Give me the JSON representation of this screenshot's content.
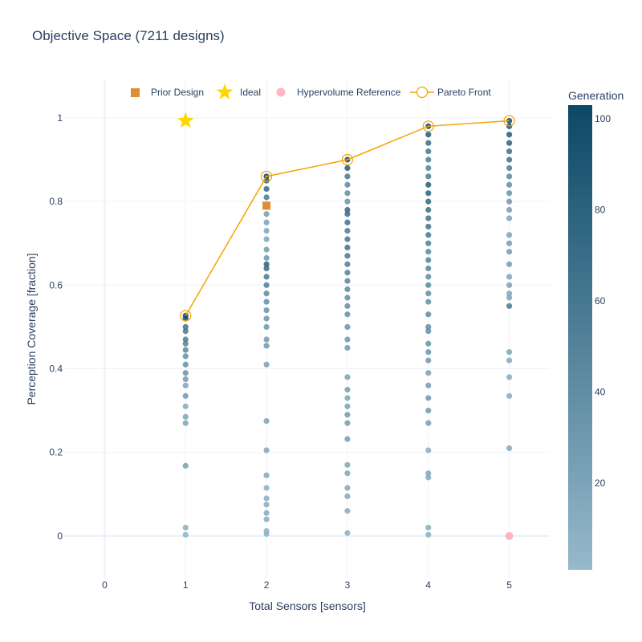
{
  "chart_data": {
    "type": "scatter",
    "title": "Objective Space (7211 designs)",
    "xlabel": "Total Sensors [sensors]",
    "ylabel": "Perception Coverage [fraction]",
    "xlim": [
      -0.5,
      5.5
    ],
    "ylim": [
      -0.1,
      1.09
    ],
    "x_ticks": [
      0,
      1,
      2,
      3,
      4,
      5
    ],
    "x_tick_labels": [
      "0",
      "1",
      "2",
      "3",
      "4",
      "5"
    ],
    "y_ticks": [
      0,
      0.2,
      0.4,
      0.6,
      0.8,
      1
    ],
    "y_tick_labels": [
      "0",
      "0.2",
      "0.4",
      "0.6",
      "0.8",
      "1"
    ],
    "grid": true,
    "legend_position": "top",
    "colorbar": {
      "title": "Generation",
      "range": [
        1,
        103
      ],
      "ticks": [
        20,
        40,
        60,
        80,
        100
      ],
      "tick_labels": [
        "20",
        "40",
        "60",
        "80",
        "100"
      ],
      "color_low": "#96b9cb",
      "color_high": "#0c4866"
    },
    "designs": [
      {
        "x": 1,
        "points": [
          [
            0.003,
            8
          ],
          [
            0.02,
            10
          ],
          [
            0.168,
            25
          ],
          [
            0.27,
            20
          ],
          [
            0.285,
            22
          ],
          [
            0.31,
            15
          ],
          [
            0.335,
            30
          ],
          [
            0.36,
            20
          ],
          [
            0.375,
            28
          ],
          [
            0.39,
            35
          ],
          [
            0.41,
            38
          ],
          [
            0.43,
            40
          ],
          [
            0.445,
            45
          ],
          [
            0.46,
            48
          ],
          [
            0.47,
            55
          ],
          [
            0.49,
            60
          ],
          [
            0.5,
            65
          ],
          [
            0.52,
            95
          ],
          [
            0.527,
            102
          ]
        ]
      },
      {
        "x": 2,
        "points": [
          [
            0.005,
            10
          ],
          [
            0.012,
            8
          ],
          [
            0.04,
            12
          ],
          [
            0.055,
            15
          ],
          [
            0.075,
            12
          ],
          [
            0.09,
            14
          ],
          [
            0.115,
            10
          ],
          [
            0.145,
            18
          ],
          [
            0.205,
            20
          ],
          [
            0.275,
            22
          ],
          [
            0.41,
            25
          ],
          [
            0.455,
            30
          ],
          [
            0.47,
            28
          ],
          [
            0.5,
            32
          ],
          [
            0.52,
            35
          ],
          [
            0.54,
            38
          ],
          [
            0.56,
            40
          ],
          [
            0.58,
            45
          ],
          [
            0.6,
            55
          ],
          [
            0.62,
            60
          ],
          [
            0.64,
            72
          ],
          [
            0.65,
            80
          ],
          [
            0.665,
            30
          ],
          [
            0.685,
            28
          ],
          [
            0.71,
            20
          ],
          [
            0.73,
            18
          ],
          [
            0.75,
            22
          ],
          [
            0.77,
            25
          ],
          [
            0.79,
            40
          ],
          [
            0.81,
            60
          ],
          [
            0.83,
            75
          ],
          [
            0.85,
            90
          ],
          [
            0.86,
            102
          ]
        ]
      },
      {
        "x": 3,
        "points": [
          [
            0.007,
            10
          ],
          [
            0.06,
            12
          ],
          [
            0.095,
            15
          ],
          [
            0.115,
            18
          ],
          [
            0.15,
            20
          ],
          [
            0.17,
            18
          ],
          [
            0.232,
            25
          ],
          [
            0.27,
            28
          ],
          [
            0.29,
            30
          ],
          [
            0.31,
            22
          ],
          [
            0.33,
            20
          ],
          [
            0.35,
            25
          ],
          [
            0.38,
            22
          ],
          [
            0.45,
            30
          ],
          [
            0.47,
            32
          ],
          [
            0.5,
            35
          ],
          [
            0.53,
            38
          ],
          [
            0.55,
            40
          ],
          [
            0.57,
            42
          ],
          [
            0.59,
            45
          ],
          [
            0.61,
            48
          ],
          [
            0.63,
            50
          ],
          [
            0.65,
            55
          ],
          [
            0.67,
            60
          ],
          [
            0.69,
            65
          ],
          [
            0.71,
            62
          ],
          [
            0.73,
            58
          ],
          [
            0.75,
            66
          ],
          [
            0.77,
            70
          ],
          [
            0.78,
            75
          ],
          [
            0.8,
            35
          ],
          [
            0.82,
            40
          ],
          [
            0.84,
            45
          ],
          [
            0.86,
            60
          ],
          [
            0.88,
            85
          ],
          [
            0.9,
            102
          ]
        ]
      },
      {
        "x": 4,
        "points": [
          [
            0.003,
            10
          ],
          [
            0.02,
            12
          ],
          [
            0.14,
            15
          ],
          [
            0.15,
            18
          ],
          [
            0.205,
            12
          ],
          [
            0.27,
            25
          ],
          [
            0.3,
            28
          ],
          [
            0.33,
            30
          ],
          [
            0.36,
            25
          ],
          [
            0.39,
            22
          ],
          [
            0.42,
            30
          ],
          [
            0.44,
            32
          ],
          [
            0.46,
            35
          ],
          [
            0.49,
            38
          ],
          [
            0.5,
            40
          ],
          [
            0.53,
            42
          ],
          [
            0.56,
            38
          ],
          [
            0.58,
            40
          ],
          [
            0.6,
            45
          ],
          [
            0.62,
            42
          ],
          [
            0.64,
            48
          ],
          [
            0.66,
            50
          ],
          [
            0.68,
            45
          ],
          [
            0.7,
            55
          ],
          [
            0.72,
            60
          ],
          [
            0.74,
            62
          ],
          [
            0.76,
            65
          ],
          [
            0.78,
            70
          ],
          [
            0.8,
            75
          ],
          [
            0.82,
            80
          ],
          [
            0.84,
            85
          ],
          [
            0.86,
            55
          ],
          [
            0.88,
            50
          ],
          [
            0.9,
            55
          ],
          [
            0.92,
            60
          ],
          [
            0.94,
            70
          ],
          [
            0.96,
            85
          ],
          [
            0.98,
            102
          ]
        ]
      },
      {
        "x": 5,
        "points": [
          [
            0.21,
            15
          ],
          [
            0.335,
            12
          ],
          [
            0.38,
            14
          ],
          [
            0.42,
            15
          ],
          [
            0.44,
            18
          ],
          [
            0.55,
            60
          ],
          [
            0.57,
            20
          ],
          [
            0.58,
            18
          ],
          [
            0.6,
            22
          ],
          [
            0.62,
            20
          ],
          [
            0.65,
            25
          ],
          [
            0.68,
            28
          ],
          [
            0.7,
            25
          ],
          [
            0.72,
            22
          ],
          [
            0.76,
            20
          ],
          [
            0.78,
            25
          ],
          [
            0.8,
            30
          ],
          [
            0.82,
            35
          ],
          [
            0.84,
            40
          ],
          [
            0.86,
            45
          ],
          [
            0.88,
            55
          ],
          [
            0.9,
            65
          ],
          [
            0.92,
            70
          ],
          [
            0.94,
            80
          ],
          [
            0.96,
            85
          ],
          [
            0.98,
            95
          ],
          [
            0.993,
            102
          ]
        ]
      }
    ],
    "prior_design": {
      "x": 2,
      "y": 0.79,
      "color": "#e08c33"
    },
    "ideal": {
      "x": 1,
      "y": 0.993,
      "color": "#ffd700"
    },
    "hypervolume_reference": {
      "x": 5,
      "y": 0.0,
      "color": "#ffb6c1"
    },
    "pareto_front": {
      "color": "#f5a300",
      "points": [
        [
          1,
          0.527
        ],
        [
          2,
          0.86
        ],
        [
          3,
          0.9
        ],
        [
          4,
          0.98
        ],
        [
          5,
          0.993
        ]
      ]
    },
    "legend": [
      {
        "key": "prior",
        "label": "Prior Design"
      },
      {
        "key": "ideal",
        "label": "Ideal"
      },
      {
        "key": "ref",
        "label": "Hypervolume Reference"
      },
      {
        "key": "pareto",
        "label": "Pareto Front"
      }
    ]
  }
}
